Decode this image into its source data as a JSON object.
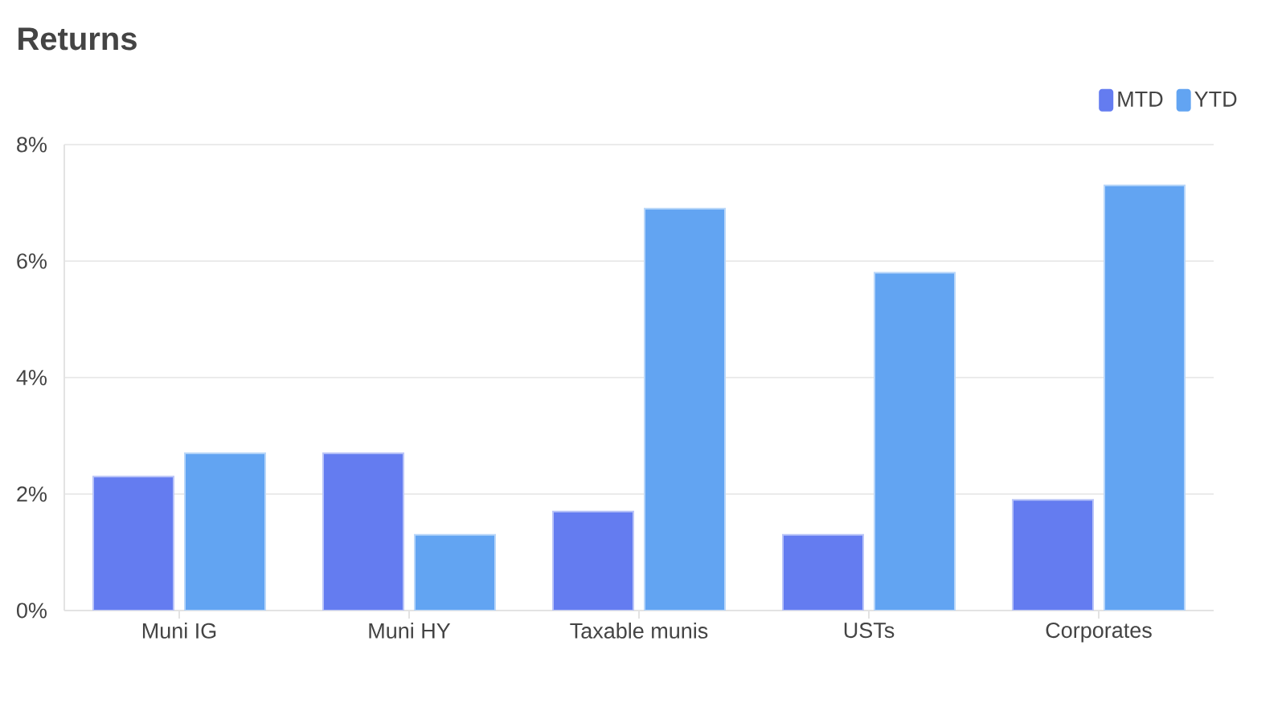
{
  "chart_data": {
    "type": "bar",
    "title": "Returns",
    "categories": [
      "Muni IG",
      "Muni HY",
      "Taxable munis",
      "USTs",
      "Corporates"
    ],
    "series": [
      {
        "name": "MTD",
        "color": "#647cf0",
        "values": [
          2.3,
          2.7,
          1.7,
          1.3,
          1.9
        ]
      },
      {
        "name": "YTD",
        "color": "#62a4f2",
        "values": [
          2.7,
          1.3,
          6.9,
          5.8,
          7.3
        ]
      }
    ],
    "ylim": [
      0,
      8
    ],
    "yticks": [
      {
        "value": 0,
        "label": "0%"
      },
      {
        "value": 2,
        "label": "2%"
      },
      {
        "value": 4,
        "label": "4%"
      },
      {
        "value": 6,
        "label": "6%"
      },
      {
        "value": 8,
        "label": "8%"
      }
    ],
    "grid": "y",
    "legend": "top right"
  }
}
